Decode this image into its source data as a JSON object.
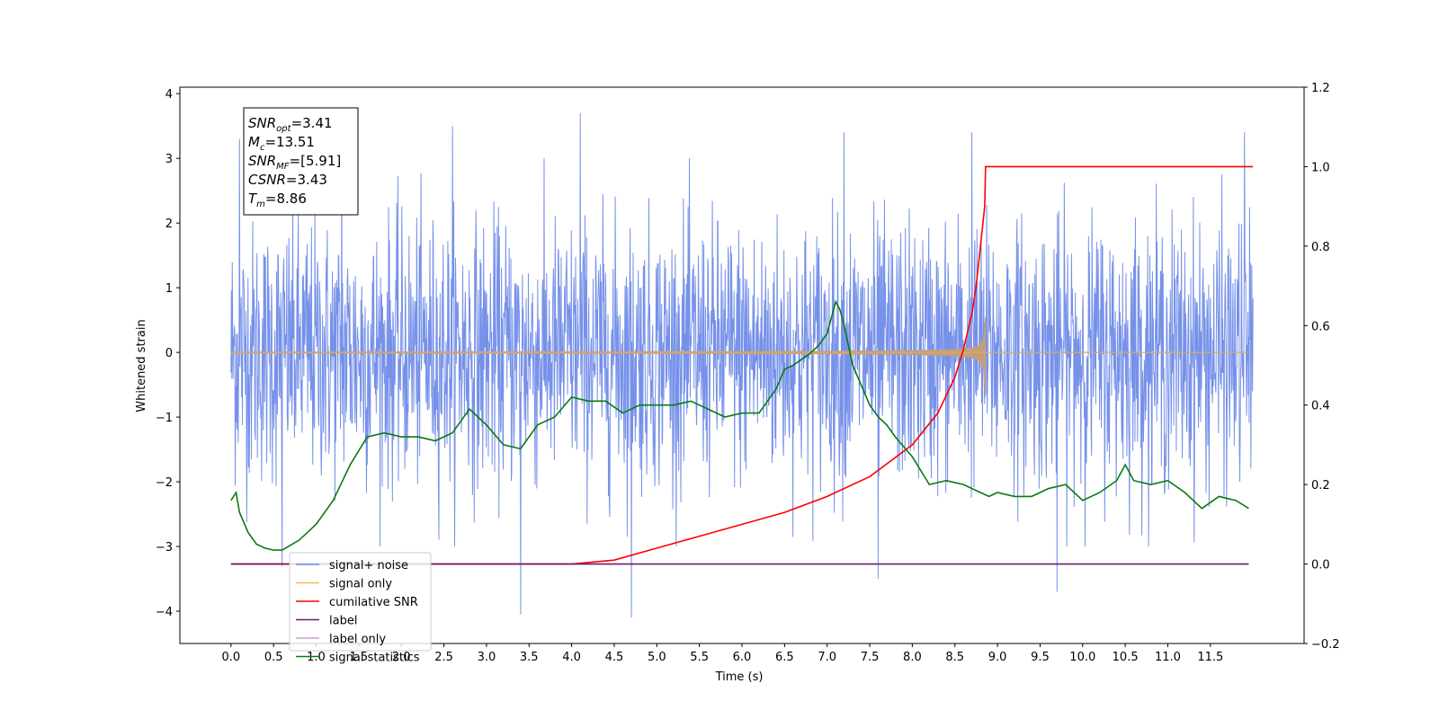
{
  "chart_data": {
    "type": "line",
    "xlabel": "Time (s)",
    "ylabel": "Whitened strain",
    "xlim": [
      -0.6,
      12.6
    ],
    "ylim": [
      -4.5,
      4.1
    ],
    "y2lim": [
      -0.2,
      1.2
    ],
    "x_ticks": [
      "0.0",
      "0.5",
      "1.0",
      "1.5",
      "2.0",
      "2.5",
      "3.0",
      "3.5",
      "4.0",
      "4.5",
      "5.0",
      "5.5",
      "6.0",
      "6.5",
      "7.0",
      "7.5",
      "8.0",
      "8.5",
      "9.0",
      "9.5",
      "10.0",
      "10.5",
      "11.0",
      "11.5"
    ],
    "y_ticks": [
      "4",
      "3",
      "2",
      "1",
      "0",
      "−1",
      "−2",
      "−3",
      "−4"
    ],
    "y2_ticks": [
      "1.2",
      "1.0",
      "0.8",
      "0.6",
      "0.4",
      "0.2",
      "0.0",
      "−0.2"
    ],
    "grid": false,
    "legend_position": "lower-left",
    "stats_box": [
      {
        "sym": "SNR",
        "sub": "opt",
        "val": "=3.41"
      },
      {
        "sym": "M",
        "sub": "c",
        "val": "=13.51"
      },
      {
        "sym": "SNR",
        "sub": "MF",
        "val": "=[5.91]"
      },
      {
        "sym": "CSNR",
        "sub": "",
        "val": "=3.43"
      },
      {
        "sym": "T",
        "sub": "m",
        "val": "=8.86"
      }
    ],
    "series": [
      {
        "name": "signal+ noise",
        "axis": "left",
        "color": "#6f8be8",
        "kind": "noise",
        "x_range": [
          0.0,
          12.0
        ],
        "sigma": 1.0,
        "peak_samples": [
          [
            0.1,
            3.3
          ],
          [
            1.3,
            3.2
          ],
          [
            2.6,
            3.5
          ],
          [
            4.1,
            3.7
          ],
          [
            7.2,
            3.4
          ],
          [
            8.7,
            3.4
          ],
          [
            11.9,
            3.4
          ],
          [
            3.4,
            -4.05
          ],
          [
            4.7,
            -4.1
          ],
          [
            9.7,
            -3.7
          ],
          [
            7.6,
            -3.5
          ],
          [
            0.6,
            -3.3
          ]
        ]
      },
      {
        "name": "signal only",
        "axis": "left",
        "color": "#f5b94f",
        "kind": "chirp",
        "merger_time": 8.86,
        "peak_amplitude": 0.55,
        "trough_amplitude": -0.7
      },
      {
        "name": "cumilative SNR",
        "axis": "right",
        "color": "#ff0000",
        "x": [
          0.0,
          4.0,
          4.5,
          5.0,
          5.5,
          6.0,
          6.5,
          7.0,
          7.5,
          8.0,
          8.3,
          8.5,
          8.6,
          8.7,
          8.75,
          8.8,
          8.85,
          8.86,
          9.0,
          12.0
        ],
        "y": [
          0.0,
          0.0,
          0.01,
          0.04,
          0.07,
          0.1,
          0.13,
          0.17,
          0.22,
          0.3,
          0.38,
          0.47,
          0.54,
          0.63,
          0.7,
          0.8,
          0.9,
          1.0,
          1.0,
          1.0
        ]
      },
      {
        "name": "label",
        "axis": "right",
        "color": "#6b1a73",
        "x": [
          0.0,
          11.95
        ],
        "y": [
          0.0,
          0.0
        ]
      },
      {
        "name": "label only",
        "axis": "right",
        "color": "#c9a0d0",
        "legend_only": true,
        "x": [],
        "y": []
      },
      {
        "name": "signal statistics",
        "axis": "right",
        "color": "#0a7a12",
        "x": [
          0.0,
          0.06,
          0.1,
          0.2,
          0.3,
          0.4,
          0.5,
          0.6,
          0.8,
          1.0,
          1.2,
          1.4,
          1.6,
          1.8,
          2.0,
          2.2,
          2.4,
          2.6,
          2.8,
          3.0,
          3.2,
          3.4,
          3.6,
          3.8,
          4.0,
          4.2,
          4.4,
          4.6,
          4.8,
          5.0,
          5.2,
          5.4,
          5.6,
          5.8,
          6.0,
          6.2,
          6.4,
          6.5,
          6.6,
          6.8,
          6.9,
          7.0,
          7.1,
          7.15,
          7.2,
          7.3,
          7.4,
          7.5,
          7.6,
          7.7,
          7.8,
          8.0,
          8.2,
          8.4,
          8.6,
          8.8,
          8.9,
          9.0,
          9.2,
          9.4,
          9.6,
          9.8,
          10.0,
          10.2,
          10.4,
          10.5,
          10.6,
          10.8,
          11.0,
          11.2,
          11.4,
          11.6,
          11.8,
          11.95
        ],
        "y": [
          0.16,
          0.18,
          0.13,
          0.08,
          0.05,
          0.04,
          0.035,
          0.035,
          0.06,
          0.1,
          0.16,
          0.25,
          0.32,
          0.33,
          0.32,
          0.32,
          0.31,
          0.33,
          0.39,
          0.35,
          0.3,
          0.29,
          0.35,
          0.37,
          0.42,
          0.41,
          0.41,
          0.38,
          0.4,
          0.4,
          0.4,
          0.41,
          0.39,
          0.37,
          0.38,
          0.38,
          0.44,
          0.49,
          0.5,
          0.53,
          0.55,
          0.58,
          0.66,
          0.64,
          0.6,
          0.5,
          0.45,
          0.4,
          0.37,
          0.35,
          0.32,
          0.27,
          0.2,
          0.21,
          0.2,
          0.18,
          0.17,
          0.18,
          0.17,
          0.17,
          0.19,
          0.2,
          0.16,
          0.18,
          0.21,
          0.25,
          0.21,
          0.2,
          0.21,
          0.18,
          0.14,
          0.17,
          0.16,
          0.14
        ]
      }
    ]
  }
}
